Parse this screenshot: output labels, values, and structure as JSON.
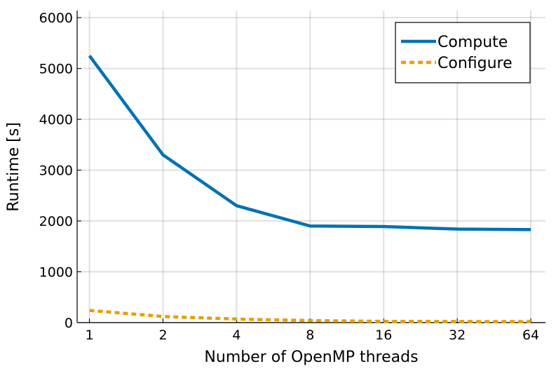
{
  "chart_data": {
    "type": "line",
    "x_label": "Number of OpenMP threads",
    "y_label": "Runtime [s]",
    "x": [
      1,
      2,
      4,
      8,
      16,
      32,
      64
    ],
    "series": [
      {
        "name": "Compute",
        "color": "#0072b2",
        "line_style": "solid",
        "values": [
          5250,
          3300,
          2300,
          1900,
          1890,
          1840,
          1830
        ]
      },
      {
        "name": "Configure",
        "color": "#e69f00",
        "line_style": "dashed",
        "values": [
          240,
          120,
          70,
          40,
          25,
          22,
          20
        ]
      }
    ],
    "xscale": "log2",
    "xlim": [
      0.89,
      73.5
    ],
    "xticks": [
      1,
      2,
      4,
      8,
      16,
      32,
      64
    ],
    "ylim": [
      0,
      6140
    ],
    "yticks": [
      0,
      1000,
      2000,
      3000,
      4000,
      5000,
      6000
    ],
    "grid": true,
    "legend": "upper-right"
  }
}
